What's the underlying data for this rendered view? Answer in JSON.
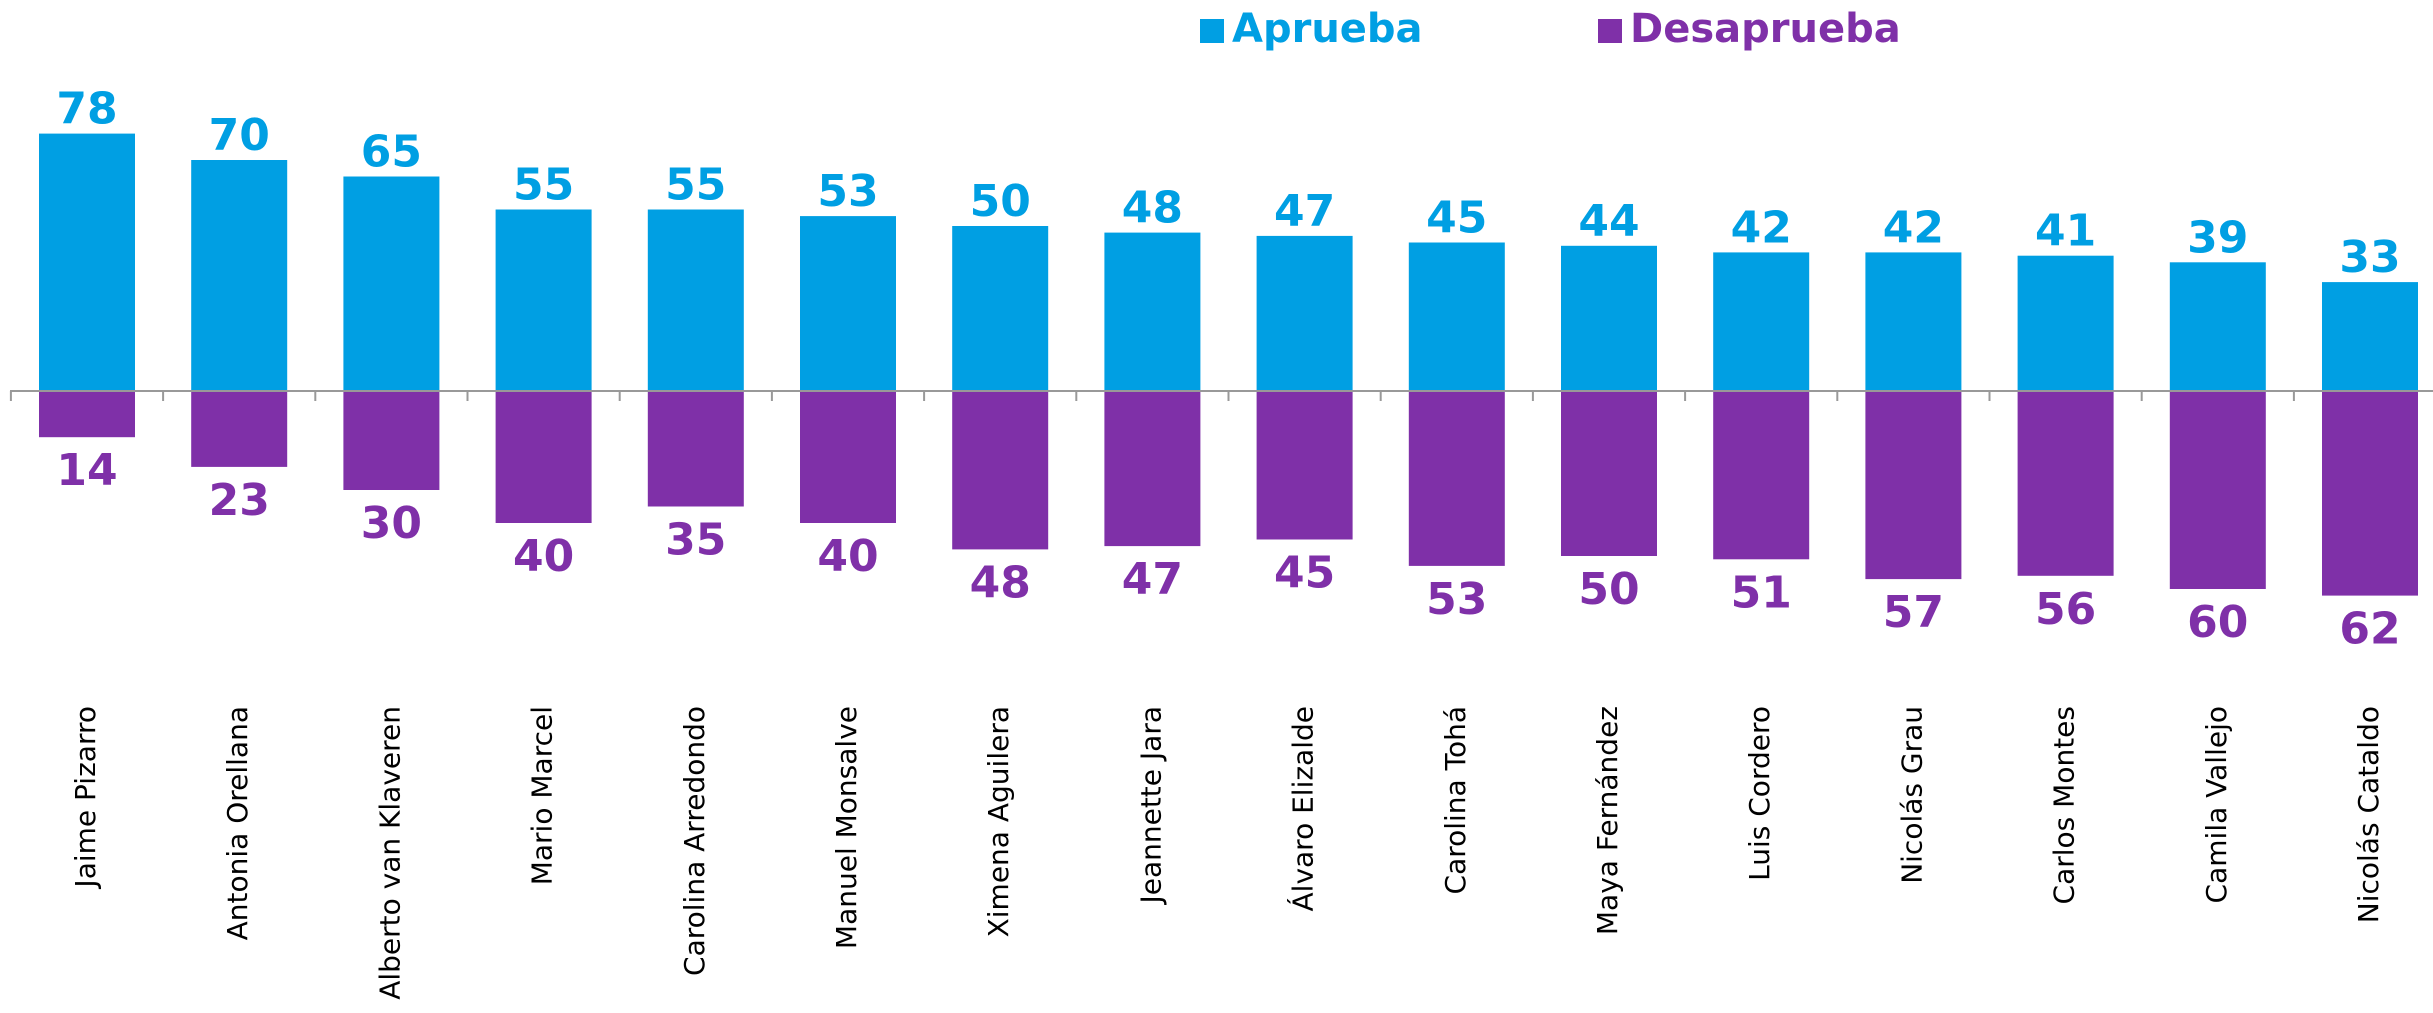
{
  "chart_data": {
    "type": "bar",
    "categories": [
      "Jaime Pizarro",
      "Antonia Orellana",
      "Alberto van Klaveren",
      "Mario Marcel",
      "Carolina Arredondo",
      "Manuel Monsalve",
      "Ximena Aguilera",
      "Jeannette Jara",
      "Álvaro Elizalde",
      "Carolina Tohá",
      "Maya Fernández",
      "Luis Cordero",
      "Nicolás Grau",
      "Carlos Montes",
      "Camila Vallejo",
      "Nicolás Cataldo"
    ],
    "series": [
      {
        "name": "Aprueba",
        "color": "#009fe3",
        "values": [
          78,
          70,
          65,
          55,
          55,
          53,
          50,
          48,
          47,
          45,
          44,
          42,
          42,
          41,
          39,
          33
        ]
      },
      {
        "name": "Desaprueba",
        "color": "#7f30a8",
        "values": [
          14,
          23,
          30,
          40,
          35,
          40,
          48,
          47,
          45,
          53,
          50,
          51,
          57,
          56,
          60,
          62
        ]
      }
    ],
    "legend": "top"
  }
}
